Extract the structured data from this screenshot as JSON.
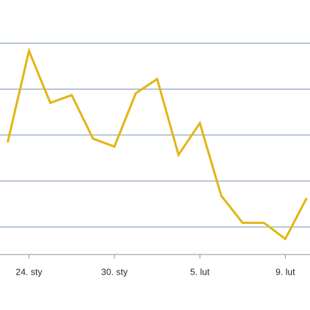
{
  "chart_data": {
    "type": "line",
    "categories": [
      null,
      "24. sty",
      null,
      null,
      null,
      "30. sty",
      null,
      null,
      null,
      "5. lut",
      null,
      null,
      null,
      "9. lut",
      null
    ],
    "values": [
      2.84,
      4.83,
      3.7,
      3.87,
      2.92,
      2.75,
      3.91,
      4.22,
      2.57,
      3.26,
      1.68,
      1.09,
      1.09,
      0.74,
      1.63
    ],
    "color": "#e2b616",
    "ylim": [
      0.4,
      5.94
    ],
    "yticks": [
      1,
      2,
      3,
      4,
      5
    ],
    "grid": true,
    "grid_color": "#6f8fb0"
  }
}
